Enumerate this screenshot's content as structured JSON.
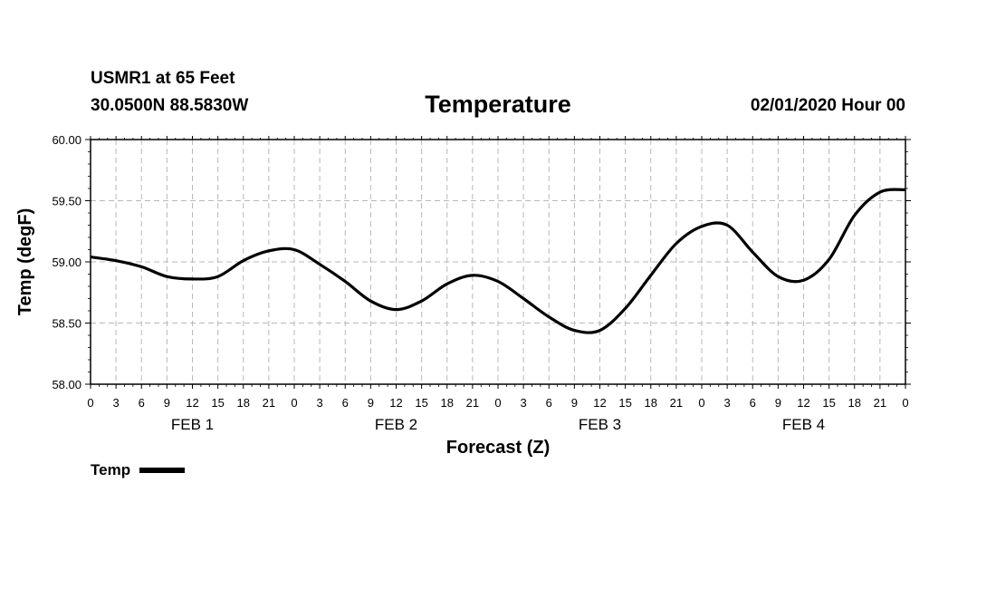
{
  "header": {
    "station": "USMR1 at 65 Feet",
    "coords": "30.0500N 88.5830W",
    "title": "Temperature",
    "datetime": "02/01/2020 Hour 00"
  },
  "chart_data": {
    "type": "line",
    "title": "Temperature",
    "xlabel": "Forecast (Z)",
    "ylabel": "Temp (degF)",
    "ylim": [
      58.0,
      60.0
    ],
    "xlim": [
      0,
      96
    ],
    "y_ticks": [
      58.0,
      58.5,
      59.0,
      59.5,
      60.0
    ],
    "y_tick_labels": [
      "58.00",
      "58.50",
      "59.00",
      "59.50",
      "60.00"
    ],
    "x_ticks": [
      0,
      3,
      6,
      9,
      12,
      15,
      18,
      21,
      24,
      27,
      30,
      33,
      36,
      39,
      42,
      45,
      48,
      51,
      54,
      57,
      60,
      63,
      66,
      69,
      72,
      75,
      78,
      81,
      84,
      87,
      90,
      93,
      96
    ],
    "x_tick_labels": [
      "0",
      "3",
      "6",
      "9",
      "12",
      "15",
      "18",
      "21",
      "0",
      "3",
      "6",
      "9",
      "12",
      "15",
      "18",
      "21",
      "0",
      "3",
      "6",
      "9",
      "12",
      "15",
      "18",
      "21",
      "0",
      "3",
      "6",
      "9",
      "12",
      "15",
      "18",
      "21",
      "0"
    ],
    "day_labels": [
      {
        "label": "FEB 1",
        "hour": 12
      },
      {
        "label": "FEB 2",
        "hour": 36
      },
      {
        "label": "FEB 3",
        "hour": 60
      },
      {
        "label": "FEB 4",
        "hour": 84
      }
    ],
    "grid": true,
    "series": [
      {
        "name": "Temp",
        "x": [
          0,
          3,
          6,
          9,
          12,
          15,
          18,
          21,
          24,
          27,
          30,
          33,
          36,
          39,
          42,
          45,
          48,
          51,
          54,
          57,
          60,
          63,
          66,
          69,
          72,
          75,
          78,
          81,
          84,
          87,
          90,
          93,
          96
        ],
        "values": [
          59.04,
          59.01,
          58.96,
          58.88,
          58.86,
          58.88,
          59.01,
          59.09,
          59.1,
          58.98,
          58.84,
          58.68,
          58.61,
          58.68,
          58.82,
          58.89,
          58.84,
          58.7,
          58.55,
          58.44,
          58.44,
          58.62,
          58.89,
          59.15,
          59.29,
          59.3,
          59.08,
          58.88,
          58.85,
          59.02,
          59.38,
          59.57,
          59.59
        ]
      }
    ]
  },
  "legend": {
    "label": "Temp"
  }
}
